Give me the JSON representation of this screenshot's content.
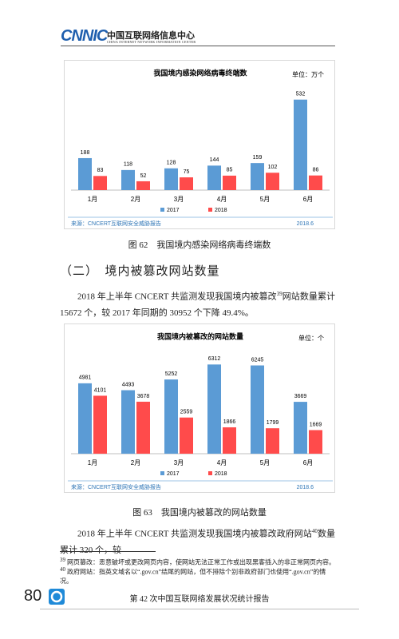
{
  "header": {
    "logo": "CNNIC",
    "org_cn": "中国互联网络信息中心",
    "org_en": "CHINA INTERNET NETWORK INFORMATION CENTER"
  },
  "chart_data": [
    {
      "type": "bar",
      "title": "我国境内感染网络病毒终端数",
      "unit": "单位：万个",
      "categories": [
        "1月",
        "2月",
        "3月",
        "4月",
        "5月",
        "6月"
      ],
      "series": [
        {
          "name": "2017",
          "color": "#5b9bd5",
          "values": [
            188,
            118,
            128,
            144,
            159,
            532
          ]
        },
        {
          "name": "2018",
          "color": "#ff4b4b",
          "values": [
            83,
            52,
            75,
            85,
            102,
            86
          ]
        }
      ],
      "ylim": [
        0,
        540
      ],
      "source": "来源：CNCERT互联网安全威胁报告",
      "date": "2018.6"
    },
    {
      "type": "bar",
      "title": "我国境内被篡改的网站数量",
      "unit": "单位：个",
      "categories": [
        "1月",
        "2月",
        "3月",
        "4月",
        "5月",
        "6月"
      ],
      "series": [
        {
          "name": "2017",
          "color": "#5b9bd5",
          "values": [
            4981,
            4493,
            5252,
            6312,
            6245,
            3669
          ]
        },
        {
          "name": "2018",
          "color": "#ff4b4b",
          "values": [
            4101,
            3678,
            2559,
            1866,
            1799,
            1669
          ]
        }
      ],
      "ylim": [
        0,
        6500
      ],
      "source": "来源：CNCERT互联网安全威胁报告",
      "date": "2018.6"
    }
  ],
  "captions": [
    "图 62　我国境内感染网络病毒终端数",
    "图 63　我国境内被篡改的网站数量"
  ],
  "section_heading": "（二）　境内被篡改网站数量",
  "paragraphs": [
    {
      "text": "2018 年上半年 CNCERT 共监测发现我国境内被篡改",
      "ref": "39",
      "rest": "网站数量累计 15672 个，较 2017 年同期的 30952 个下降 49.4%。"
    },
    {
      "text": "2018 年上半年 CNCERT 共监测发现我国境内被篡改政府网站",
      "ref": "40",
      "rest": "数量累计 320 个，较"
    }
  ],
  "footnotes": [
    {
      "num": "39",
      "text": "网页篡改：恶意破坏或更改网页内容，使网站无法正常工作或出现黑客插入的非正常网页内容。"
    },
    {
      "num": "40",
      "text": "政府网站：指英文域名以“.gov.cn”结尾的网站，但不排除个别非政府部门也使用“.gov.cn”的情况。"
    }
  ],
  "footer": {
    "page": "80",
    "title": "第 42 次中国互联网络发展状况统计报告"
  }
}
